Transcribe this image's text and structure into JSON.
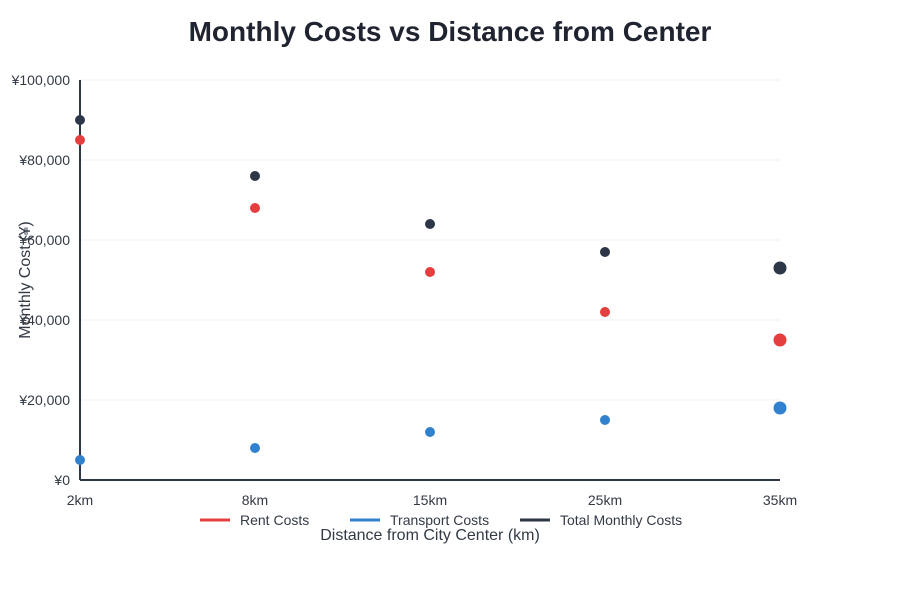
{
  "chart_data": {
    "type": "scatter",
    "title": "Monthly Costs vs Distance from Center",
    "xlabel": "Distance from City Center (km)",
    "ylabel": "Monthly Cost (¥)",
    "categories": [
      "2km",
      "8km",
      "15km",
      "25km",
      "35km"
    ],
    "ylim": [
      0,
      100000
    ],
    "yticks": [
      0,
      20000,
      40000,
      60000,
      80000,
      100000
    ],
    "ytick_labels": [
      "¥0",
      "¥20,000",
      "¥40,000",
      "¥60,000",
      "¥80,000",
      "¥100,000"
    ],
    "grid": true,
    "legend_position": "bottom",
    "series": [
      {
        "name": "Rent Costs",
        "color": "#e53e3e",
        "values": [
          85000,
          68000,
          52000,
          42000,
          35000
        ]
      },
      {
        "name": "Transport Costs",
        "color": "#3182ce",
        "values": [
          5000,
          8000,
          12000,
          15000,
          18000
        ]
      },
      {
        "name": "Total Monthly Costs",
        "color": "#2d3748",
        "values": [
          90000,
          76000,
          64000,
          57000,
          53000
        ]
      }
    ]
  }
}
